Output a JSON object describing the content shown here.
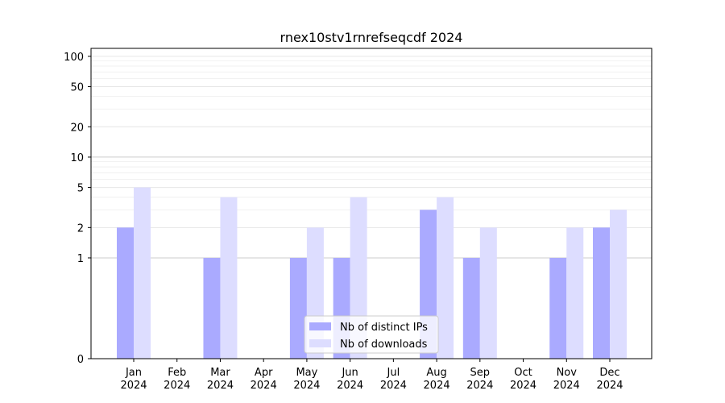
{
  "chart_data": {
    "type": "bar",
    "title": "rnex10stv1rnrefseqcdf 2024",
    "xlabel": "",
    "ylabel": "",
    "y_scale": "symlog",
    "ylim": [
      0,
      120
    ],
    "y_ticks": [
      0,
      1,
      2,
      5,
      10,
      20,
      50,
      100
    ],
    "y_tick_labels": [
      "0",
      "1",
      "2",
      "5",
      "10",
      "20",
      "50",
      "100"
    ],
    "categories": [
      [
        "Jan",
        "2024"
      ],
      [
        "Feb",
        "2024"
      ],
      [
        "Mar",
        "2024"
      ],
      [
        "Apr",
        "2024"
      ],
      [
        "May",
        "2024"
      ],
      [
        "Jun",
        "2024"
      ],
      [
        "Jul",
        "2024"
      ],
      [
        "Aug",
        "2024"
      ],
      [
        "Sep",
        "2024"
      ],
      [
        "Oct",
        "2024"
      ],
      [
        "Nov",
        "2024"
      ],
      [
        "Dec",
        "2024"
      ]
    ],
    "series": [
      {
        "name": "Nb of distinct IPs",
        "color": "#aaaaff",
        "values": [
          2,
          0,
          1,
          0,
          1,
          1,
          0,
          3,
          1,
          0,
          1,
          2
        ]
      },
      {
        "name": "Nb of downloads",
        "color": "#ddddff",
        "values": [
          5,
          0,
          4,
          0,
          2,
          4,
          0,
          4,
          2,
          0,
          2,
          3
        ]
      }
    ],
    "legend_position": "lower-center",
    "grid": "horizontal, major and minor"
  }
}
